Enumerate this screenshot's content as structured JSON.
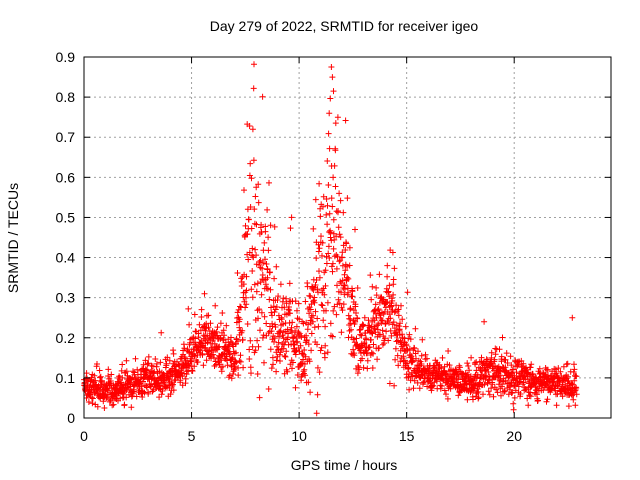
{
  "chart_data": {
    "type": "scatter",
    "title": "Day 279 of 2022, SRMTID for receiver igeo",
    "xlabel": "GPS time / hours",
    "ylabel": "SRMTID / TECUs",
    "xlim": [
      0,
      24.5
    ],
    "ylim": [
      0,
      0.9
    ],
    "x_ticks": [
      0,
      5,
      10,
      15,
      20
    ],
    "x_tick_labels": [
      "0",
      "5",
      "10",
      "15",
      "20"
    ],
    "y_ticks": [
      0,
      0.1,
      0.2,
      0.3,
      0.4,
      0.5,
      0.6,
      0.7,
      0.8,
      0.9
    ],
    "y_tick_labels": [
      "0",
      "0.1",
      "0.2",
      "0.3",
      "0.4",
      "0.5",
      "0.6",
      "0.7",
      "0.8",
      "0.9"
    ],
    "grid": true,
    "marker": "+",
    "marker_color": "#ff0000",
    "x_range_observed": [
      0.0,
      22.9
    ],
    "profile": [
      {
        "x": 0.0,
        "y": 0.08,
        "spread": 0.03
      },
      {
        "x": 1.0,
        "y": 0.07,
        "spread": 0.03
      },
      {
        "x": 2.0,
        "y": 0.08,
        "spread": 0.03
      },
      {
        "x": 3.0,
        "y": 0.1,
        "spread": 0.03
      },
      {
        "x": 4.0,
        "y": 0.1,
        "spread": 0.03
      },
      {
        "x": 4.8,
        "y": 0.14,
        "spread": 0.04
      },
      {
        "x": 5.5,
        "y": 0.2,
        "spread": 0.05
      },
      {
        "x": 6.0,
        "y": 0.18,
        "spread": 0.04
      },
      {
        "x": 7.0,
        "y": 0.15,
        "spread": 0.04
      },
      {
        "x": 7.8,
        "y": 0.4,
        "spread": 0.2
      },
      {
        "x": 8.3,
        "y": 0.35,
        "spread": 0.15
      },
      {
        "x": 9.0,
        "y": 0.2,
        "spread": 0.08
      },
      {
        "x": 9.5,
        "y": 0.22,
        "spread": 0.1
      },
      {
        "x": 10.2,
        "y": 0.16,
        "spread": 0.06
      },
      {
        "x": 11.0,
        "y": 0.35,
        "spread": 0.18
      },
      {
        "x": 11.5,
        "y": 0.45,
        "spread": 0.22
      },
      {
        "x": 12.0,
        "y": 0.35,
        "spread": 0.12
      },
      {
        "x": 12.8,
        "y": 0.18,
        "spread": 0.06
      },
      {
        "x": 14.2,
        "y": 0.28,
        "spread": 0.08
      },
      {
        "x": 15.0,
        "y": 0.15,
        "spread": 0.05
      },
      {
        "x": 16.0,
        "y": 0.1,
        "spread": 0.03
      },
      {
        "x": 17.0,
        "y": 0.1,
        "spread": 0.03
      },
      {
        "x": 18.0,
        "y": 0.09,
        "spread": 0.03
      },
      {
        "x": 19.0,
        "y": 0.12,
        "spread": 0.04
      },
      {
        "x": 20.0,
        "y": 0.1,
        "spread": 0.04
      },
      {
        "x": 21.0,
        "y": 0.09,
        "spread": 0.03
      },
      {
        "x": 22.0,
        "y": 0.09,
        "spread": 0.03
      },
      {
        "x": 22.9,
        "y": 0.08,
        "spread": 0.03
      }
    ],
    "notable_points": [
      {
        "x": 7.85,
        "y": 0.72
      },
      {
        "x": 11.5,
        "y": 0.875
      },
      {
        "x": 11.55,
        "y": 0.85
      },
      {
        "x": 11.6,
        "y": 0.815
      },
      {
        "x": 11.4,
        "y": 0.76
      },
      {
        "x": 9.65,
        "y": 0.5
      },
      {
        "x": 12.6,
        "y": 0.47
      },
      {
        "x": 22.7,
        "y": 0.25
      },
      {
        "x": 18.6,
        "y": 0.24
      },
      {
        "x": 14.1,
        "y": 0.38
      },
      {
        "x": 5.6,
        "y": 0.31
      },
      {
        "x": 6.1,
        "y": 0.28
      }
    ],
    "point_count": 2200
  }
}
